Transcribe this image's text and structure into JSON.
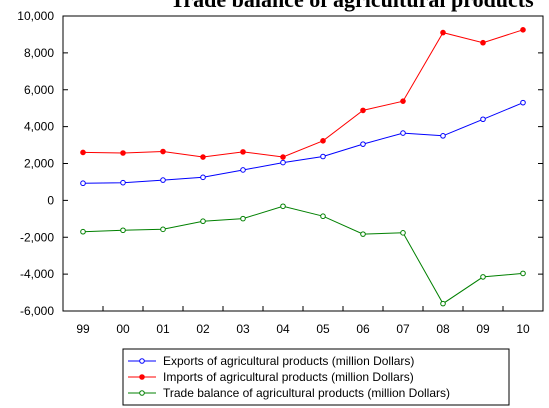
{
  "chart_data": {
    "type": "line",
    "title": "Trade balance of agricultural products",
    "categories": [
      "99",
      "00",
      "01",
      "02",
      "03",
      "04",
      "05",
      "06",
      "07",
      "08",
      "09",
      "10"
    ],
    "ylim": [
      -6000,
      10000
    ],
    "yticks": [
      -6000,
      -4000,
      -2000,
      0,
      2000,
      4000,
      6000,
      8000,
      10000
    ],
    "ytick_labels": [
      "-6,000",
      "-4,000",
      "-2,000",
      "0",
      "2,000",
      "4,000",
      "6,000",
      "8,000",
      "10,000"
    ],
    "grid": false,
    "legend_position": "bottom",
    "series": [
      {
        "name": "Exports of agricultural products (million Dollars)",
        "color": "#0000ff",
        "marker": "hollow-circle",
        "values": [
          930,
          960,
          1100,
          1250,
          1650,
          2050,
          2380,
          3050,
          3650,
          3500,
          4400,
          5300
        ]
      },
      {
        "name": "Imports of agricultural products (million Dollars)",
        "color": "#ff0000",
        "marker": "filled-circle",
        "values": [
          2600,
          2570,
          2650,
          2350,
          2630,
          2350,
          3230,
          4880,
          5380,
          9100,
          8550,
          9250
        ]
      },
      {
        "name": "Trade balance of agricultural products (million Dollars)",
        "color": "#008000",
        "marker": "hollow-circle",
        "values": [
          -1700,
          -1620,
          -1570,
          -1130,
          -990,
          -320,
          -860,
          -1830,
          -1760,
          -5600,
          -4150,
          -3960
        ]
      }
    ]
  }
}
